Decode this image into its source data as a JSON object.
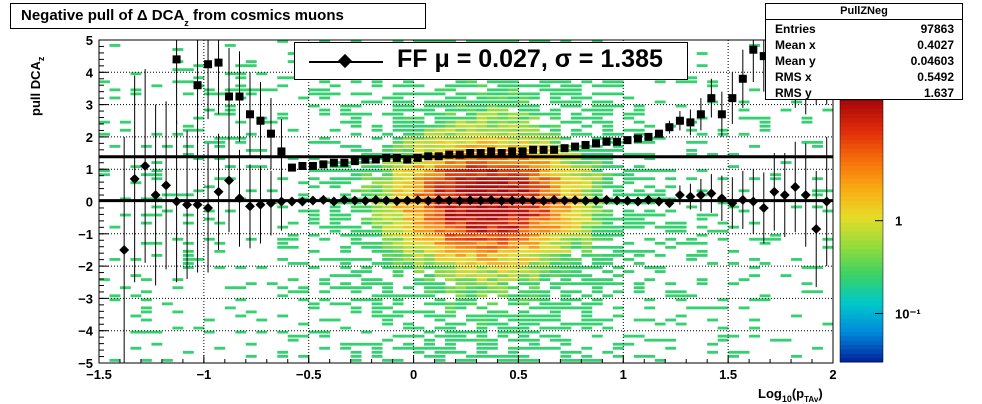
{
  "chart_data": {
    "type": "scatter",
    "title": "Negative pull of Δ DCA",
    "title_subscript": "z",
    "title_suffix": " from cosmics muons",
    "xlabel": "Log",
    "xlabel_sub1": "10",
    "xlabel_mid": "(p",
    "xlabel_sub2": "TAv",
    "xlabel_end": ")",
    "ylabel": "pull DCA",
    "ylabel_sub": "z",
    "xlim": [
      -1.5,
      2.0
    ],
    "ylim": [
      -5,
      5
    ],
    "x_ticks": [
      "−1.5",
      "−1",
      "−0.5",
      "0",
      "0.5",
      "1",
      "1.5",
      "2"
    ],
    "x_tick_values": [
      -1.5,
      -1,
      -0.5,
      0,
      0.5,
      1,
      1.5,
      2
    ],
    "y_ticks": [
      "−5",
      "−4",
      "−3",
      "−2",
      "−1",
      "0",
      "1",
      "2",
      "3",
      "4",
      "5"
    ],
    "y_tick_values": [
      -5,
      -4,
      -3,
      -2,
      -1,
      0,
      1,
      2,
      3,
      4,
      5
    ],
    "grid": true,
    "color_scale": {
      "type": "log",
      "tick_labels": [
        "1",
        "10⁻¹"
      ],
      "tick_values": [
        1,
        0.1
      ],
      "range": [
        0.03,
        20
      ]
    },
    "fit_legend": "FF μ =  0.027, σ =   1.385",
    "fit_lines": {
      "mean": 0.027,
      "sigma": 1.385
    },
    "stats": {
      "name": "PullZNeg",
      "rows": [
        {
          "label": "Entries",
          "value": "97863"
        },
        {
          "label": "Mean x",
          "value": "0.4027"
        },
        {
          "label": "Mean y",
          "value": "0.04603"
        },
        {
          "label": "RMS x",
          "value": "0.5492"
        },
        {
          "label": "RMS y",
          "value": "1.637"
        }
      ]
    },
    "series": [
      {
        "marker": "diamond",
        "x": [
          -1.38,
          -1.33,
          -1.28,
          -1.23,
          -1.18,
          -1.13,
          -1.08,
          -1.03,
          -0.98,
          -0.93,
          -0.88,
          -0.83,
          -0.78,
          -0.73,
          -0.68,
          -0.63,
          -0.58,
          -0.53,
          -0.48,
          -0.43,
          -0.38,
          -0.33,
          -0.28,
          -0.23,
          -0.18,
          -0.13,
          -0.08,
          -0.03,
          0.02,
          0.07,
          0.12,
          0.17,
          0.22,
          0.27,
          0.32,
          0.37,
          0.42,
          0.47,
          0.52,
          0.57,
          0.62,
          0.67,
          0.72,
          0.77,
          0.82,
          0.87,
          0.92,
          0.97,
          1.02,
          1.07,
          1.12,
          1.17,
          1.22,
          1.27,
          1.32,
          1.37,
          1.42,
          1.47,
          1.52,
          1.57,
          1.62,
          1.67,
          1.72,
          1.77,
          1.82,
          1.87,
          1.92,
          1.97
        ],
        "y": [
          -1.5,
          0.7,
          1.1,
          0.2,
          0.5,
          0.0,
          -0.1,
          -0.1,
          -0.2,
          0.3,
          0.65,
          0.1,
          -0.15,
          -0.1,
          -0.05,
          0.0,
          0.0,
          0.0,
          0.03,
          0.05,
          0.0,
          0.05,
          0.03,
          0.02,
          0.05,
          0.03,
          0.01,
          0.03,
          0.04,
          0.02,
          0.05,
          0.03,
          0.02,
          0.04,
          0.03,
          0.05,
          0.02,
          0.03,
          0.04,
          0.03,
          0.02,
          0.05,
          0.03,
          0.04,
          0.02,
          0.03,
          0.05,
          0.03,
          0.02,
          0.0,
          0.05,
          0.0,
          -0.05,
          0.2,
          0.15,
          0.2,
          0.25,
          0.1,
          -0.05,
          0.05,
          0.0,
          -0.2,
          0.3,
          0.2,
          0.45,
          0.2,
          -0.85,
          0.0
        ],
        "yerr": [
          3.5,
          3.2,
          3.0,
          2.8,
          2.6,
          2.5,
          2.3,
          2.1,
          2.0,
          1.8,
          1.6,
          1.5,
          1.3,
          1.2,
          1.0,
          0.9,
          0.1,
          0.06,
          0.05,
          0.04,
          0.04,
          0.03,
          0.03,
          0.03,
          0.03,
          0.03,
          0.03,
          0.03,
          0.03,
          0.03,
          0.03,
          0.03,
          0.03,
          0.03,
          0.03,
          0.03,
          0.03,
          0.03,
          0.03,
          0.03,
          0.03,
          0.03,
          0.03,
          0.03,
          0.04,
          0.04,
          0.04,
          0.04,
          0.05,
          0.05,
          0.06,
          0.06,
          0.07,
          0.3,
          0.4,
          0.5,
          0.6,
          0.7,
          0.8,
          0.9,
          1.0,
          1.1,
          1.2,
          1.3,
          1.4,
          1.6,
          1.8,
          2.0
        ]
      },
      {
        "marker": "square",
        "x": [
          -1.13,
          -1.03,
          -0.98,
          -0.93,
          -0.88,
          -0.83,
          -0.78,
          -0.73,
          -0.68,
          -0.63,
          -0.58,
          -0.53,
          -0.48,
          -0.43,
          -0.38,
          -0.33,
          -0.28,
          -0.23,
          -0.18,
          -0.13,
          -0.08,
          -0.03,
          0.02,
          0.07,
          0.12,
          0.17,
          0.22,
          0.27,
          0.32,
          0.37,
          0.42,
          0.47,
          0.52,
          0.57,
          0.62,
          0.67,
          0.72,
          0.77,
          0.82,
          0.87,
          0.92,
          0.97,
          1.02,
          1.07,
          1.12,
          1.17,
          1.22,
          1.27,
          1.32,
          1.37,
          1.42,
          1.47,
          1.52,
          1.57,
          1.62,
          1.67,
          1.72,
          1.77,
          1.82,
          1.87,
          1.92,
          1.97
        ],
        "y": [
          4.4,
          3.6,
          4.25,
          4.3,
          3.25,
          3.25,
          2.7,
          2.5,
          2.1,
          1.55,
          1.05,
          1.1,
          1.1,
          1.15,
          1.2,
          1.2,
          1.25,
          1.3,
          1.3,
          1.35,
          1.35,
          1.3,
          1.35,
          1.4,
          1.4,
          1.45,
          1.45,
          1.5,
          1.5,
          1.55,
          1.5,
          1.55,
          1.55,
          1.6,
          1.6,
          1.6,
          1.65,
          1.7,
          1.75,
          1.8,
          1.85,
          1.85,
          1.9,
          1.95,
          2.0,
          2.1,
          2.3,
          2.5,
          2.45,
          2.7,
          3.2,
          2.7,
          3.2,
          3.8,
          4.7,
          4.5,
          4.4,
          4.5,
          4.3,
          4.2,
          4.6,
          4.8
        ],
        "yerr": [
          2.0,
          1.8,
          1.7,
          1.6,
          1.5,
          1.4,
          1.3,
          1.2,
          1.1,
          1.0,
          0.1,
          0.06,
          0.05,
          0.04,
          0.04,
          0.03,
          0.03,
          0.03,
          0.03,
          0.03,
          0.03,
          0.03,
          0.03,
          0.03,
          0.03,
          0.03,
          0.03,
          0.03,
          0.03,
          0.03,
          0.03,
          0.03,
          0.03,
          0.03,
          0.03,
          0.03,
          0.04,
          0.04,
          0.04,
          0.05,
          0.05,
          0.05,
          0.06,
          0.06,
          0.07,
          0.08,
          0.2,
          0.3,
          0.4,
          0.5,
          0.6,
          0.7,
          0.8,
          0.9,
          1.0,
          1.1,
          1.2,
          1.3,
          1.4,
          1.5,
          1.6,
          1.8
        ]
      }
    ]
  }
}
